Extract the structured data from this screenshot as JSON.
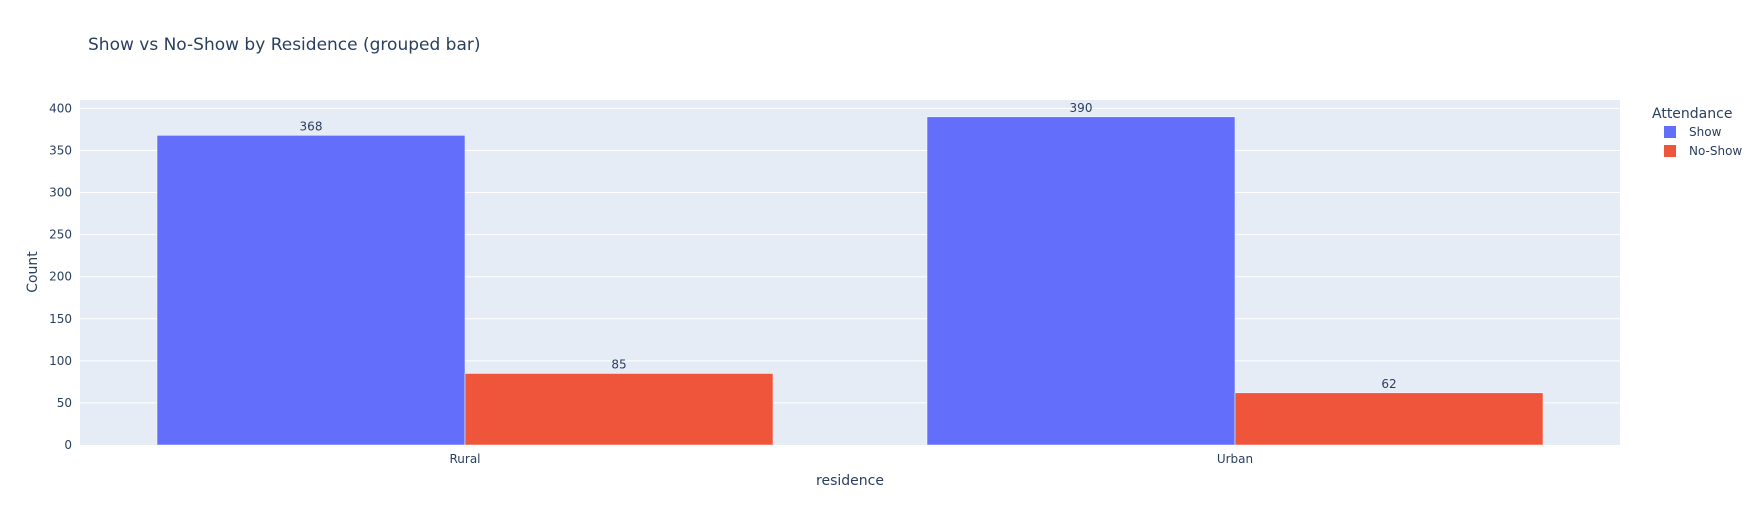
{
  "chart_data": {
    "type": "bar",
    "title": "Show vs No-Show by Residence (grouped bar)",
    "xlabel": "residence",
    "ylabel": "Count",
    "categories": [
      "Rural",
      "Urban"
    ],
    "series": [
      {
        "name": "Show",
        "values": [
          368,
          390
        ],
        "color": "#636efa"
      },
      {
        "name": "No-Show",
        "values": [
          85,
          62
        ],
        "color": "#ef553b"
      }
    ],
    "ylim": [
      0,
      410
    ],
    "yticks": [
      0,
      50,
      100,
      150,
      200,
      250,
      300,
      350,
      400
    ],
    "legend": {
      "title": "Attendance",
      "position": "top-right"
    },
    "grid": true,
    "plot_background": "#e5ecf6",
    "grid_color": "#ffffff"
  }
}
